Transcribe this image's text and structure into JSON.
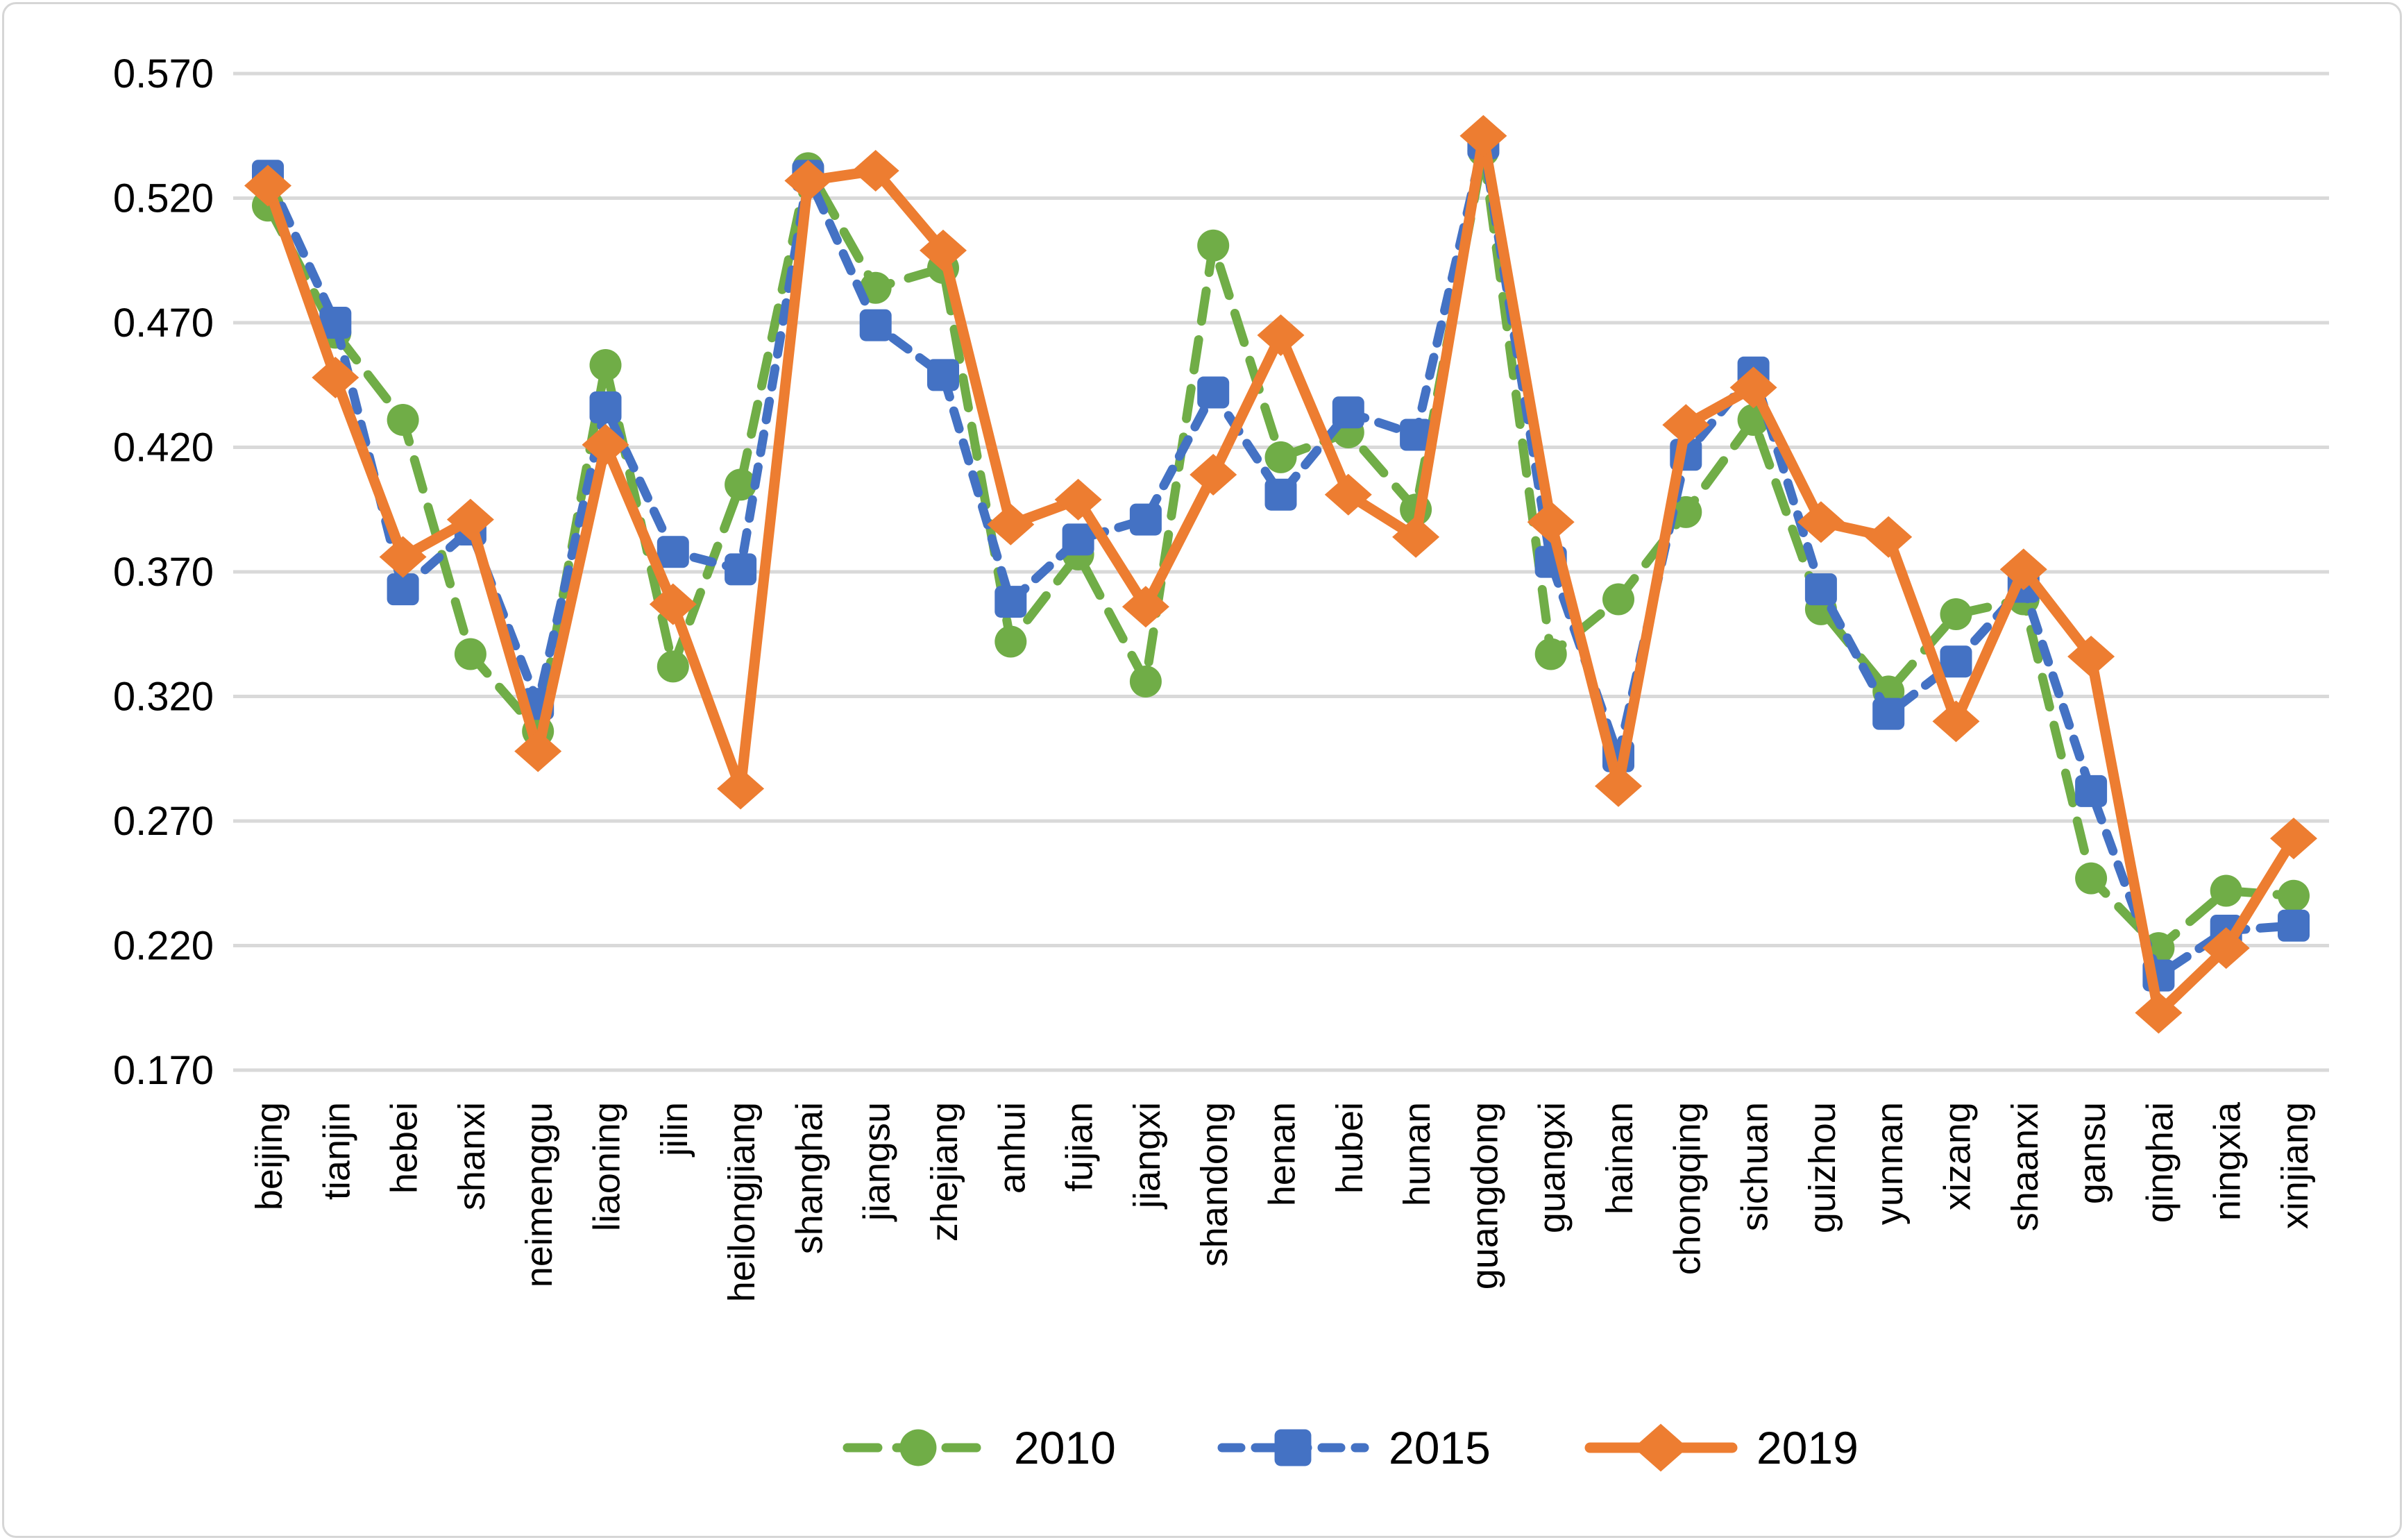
{
  "chart_data": {
    "type": "line",
    "title": "",
    "xlabel": "",
    "ylabel": "",
    "grid": true,
    "legend_position": "bottom",
    "background": "#FFFFFF",
    "border_color": "#D6D6D6",
    "gridline_color": "#D9D9D9",
    "text_color": "#000000",
    "y_axis": {
      "min": 0.17,
      "max": 0.57,
      "step": 0.05,
      "tick_labels": [
        "0.570",
        "0.520",
        "0.470",
        "0.420",
        "0.370",
        "0.320",
        "0.270",
        "0.220",
        "0.170"
      ]
    },
    "categories": [
      "beijing",
      "tianjin",
      "hebei",
      "shanxi",
      "neimenggu",
      "liaoning",
      "jilin",
      "heilongjiang",
      "shanghai",
      "jiangsu",
      "zhejiang",
      "anhui",
      "fujian",
      "jiangxi",
      "shandong",
      "henan",
      "hubei",
      "hunan",
      "guangdong",
      "guangxi",
      "hainan",
      "chongqing",
      "sichuan",
      "guizhou",
      "yunnan",
      "xizang",
      "shaanxi",
      "gansu",
      "qinghai",
      "ningxia",
      "xinjiang"
    ],
    "series": [
      {
        "name": "2010",
        "color": "#70AD47",
        "line_style": "dashed",
        "marker": "circle",
        "values": [
          0.517,
          0.466,
          0.431,
          0.337,
          0.306,
          0.453,
          0.332,
          0.405,
          0.532,
          0.484,
          0.492,
          0.342,
          0.377,
          0.326,
          0.501,
          0.416,
          0.426,
          0.395,
          0.539,
          0.337,
          0.359,
          0.394,
          0.431,
          0.355,
          0.322,
          0.353,
          0.359,
          0.247,
          0.219,
          0.242,
          0.24
        ]
      },
      {
        "name": "2015",
        "color": "#4472C4",
        "line_style": "dashed",
        "marker": "square",
        "values": [
          0.529,
          0.47,
          0.363,
          0.387,
          0.317,
          0.436,
          0.378,
          0.371,
          0.529,
          0.469,
          0.449,
          0.358,
          0.383,
          0.391,
          0.442,
          0.401,
          0.434,
          0.425,
          0.542,
          0.374,
          0.296,
          0.417,
          0.45,
          0.363,
          0.313,
          0.334,
          0.364,
          0.282,
          0.208,
          0.226,
          0.228
        ]
      },
      {
        "name": "2019",
        "color": "#ED7D31",
        "line_style": "solid",
        "marker": "diamond",
        "values": [
          0.525,
          0.448,
          0.376,
          0.391,
          0.298,
          0.421,
          0.357,
          0.283,
          0.527,
          0.531,
          0.499,
          0.389,
          0.399,
          0.356,
          0.409,
          0.465,
          0.401,
          0.384,
          0.545,
          0.39,
          0.284,
          0.429,
          0.444,
          0.39,
          0.384,
          0.31,
          0.371,
          0.336,
          0.193,
          0.219,
          0.263
        ]
      }
    ]
  }
}
